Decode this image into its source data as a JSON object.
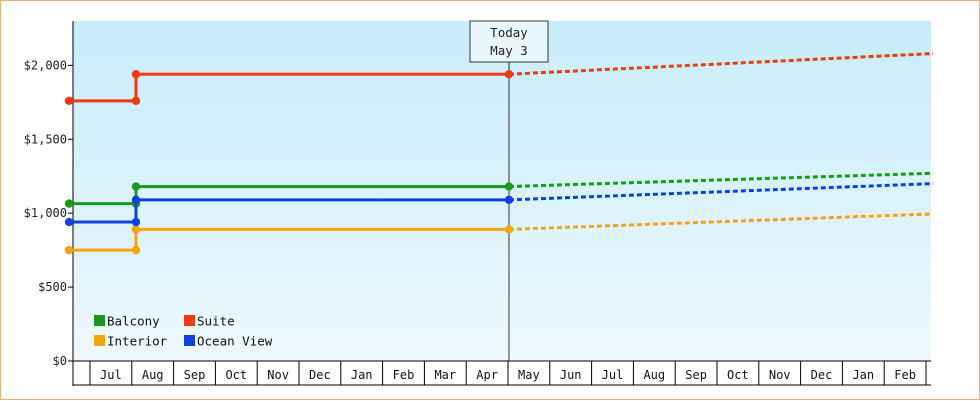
{
  "chart_data": {
    "type": "line",
    "title": "",
    "xlabel": "",
    "ylabel": "",
    "ylim": [
      0,
      2300
    ],
    "yticks": [
      "$0",
      "$500",
      "$1,000",
      "$1,500",
      "$2,000"
    ],
    "ytick_values": [
      0,
      500,
      1000,
      1500,
      2000
    ],
    "months": [
      "Jul",
      "Aug",
      "Sep",
      "Oct",
      "Nov",
      "Dec",
      "Jan",
      "Feb",
      "Mar",
      "Apr",
      "May",
      "Jun",
      "Jul",
      "Aug",
      "Sep",
      "Oct",
      "Nov",
      "Dec",
      "Jan",
      "Feb"
    ],
    "today": {
      "line1": "Today",
      "line2": "May 3"
    },
    "grid": false,
    "legend_position": "bottom-left",
    "series": [
      {
        "name": "Balcony",
        "color": "#1a9a1a",
        "actual": [
          [
            "Jun",
            1065
          ],
          [
            "Aug",
            1065
          ],
          [
            "Aug",
            1180
          ],
          [
            "May 3",
            1180
          ]
        ],
        "forecast": [
          [
            "May 3",
            1180
          ],
          [
            "Feb end",
            1270
          ]
        ]
      },
      {
        "name": "Suite",
        "color": "#ee3a10",
        "actual": [
          [
            "Jun",
            1760
          ],
          [
            "Aug",
            1760
          ],
          [
            "Aug",
            1940
          ],
          [
            "May 3",
            1940
          ]
        ],
        "forecast": [
          [
            "May 3",
            1940
          ],
          [
            "Feb end",
            2080
          ]
        ]
      },
      {
        "name": "Interior",
        "color": "#f5a40c",
        "actual": [
          [
            "Jun",
            750
          ],
          [
            "Aug",
            750
          ],
          [
            "Aug",
            890
          ],
          [
            "May 3",
            890
          ]
        ],
        "forecast": [
          [
            "May 3",
            890
          ],
          [
            "Feb end",
            995
          ]
        ]
      },
      {
        "name": "Ocean View",
        "color": "#1040e0",
        "actual": [
          [
            "Jun",
            940
          ],
          [
            "Aug",
            940
          ],
          [
            "Aug",
            1090
          ],
          [
            "May 3",
            1090
          ]
        ],
        "forecast": [
          [
            "May 3",
            1090
          ],
          [
            "Feb end",
            1200
          ]
        ]
      }
    ]
  }
}
